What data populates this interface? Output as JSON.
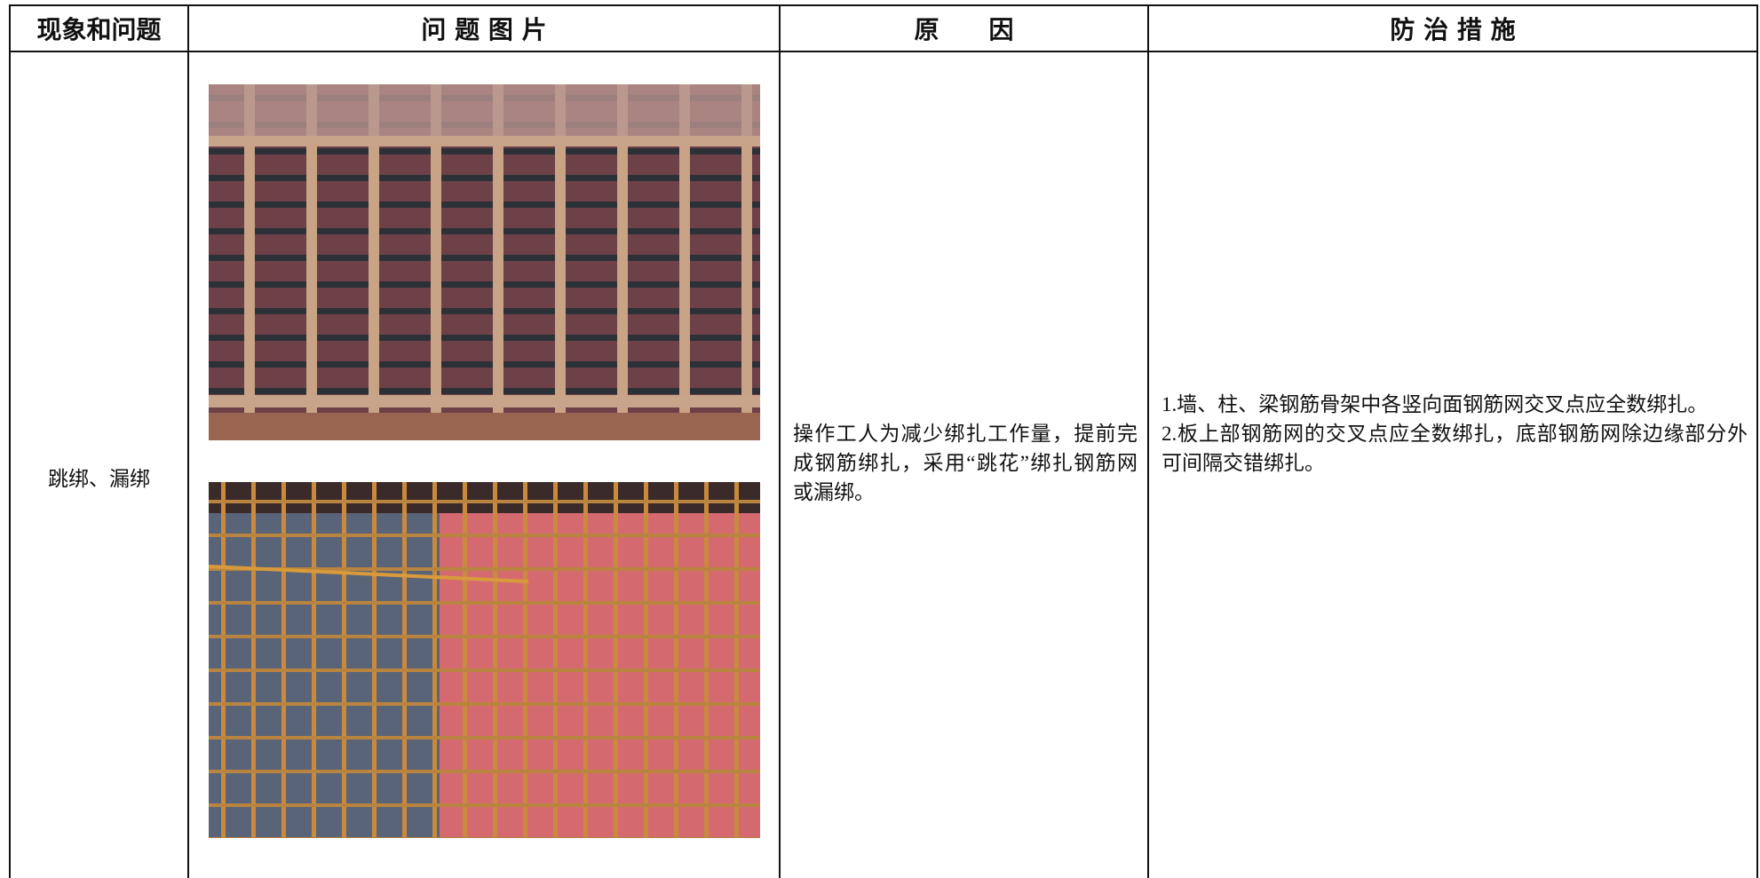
{
  "table": {
    "header": [
      "现象和问题",
      "问 题 图 片",
      "原　　因",
      "防 治 措 施"
    ],
    "rows": [
      {
        "phenomenon": "跳绑、漏绑",
        "reason": "操作工人为减少绑扎工作量，提前完成钢筋绑扎，采用“跳花”绑扎钢筋网或漏绑。",
        "measures": [
          "1.墙、柱、梁钢筋骨架中各竖向面钢筋网交叉点应全数绑扎。",
          "2.板上部钢筋网的交叉点应全数绑扎，底部钢筋网除边缘部分外可间隔交错绑扎。"
        ]
      }
    ]
  }
}
